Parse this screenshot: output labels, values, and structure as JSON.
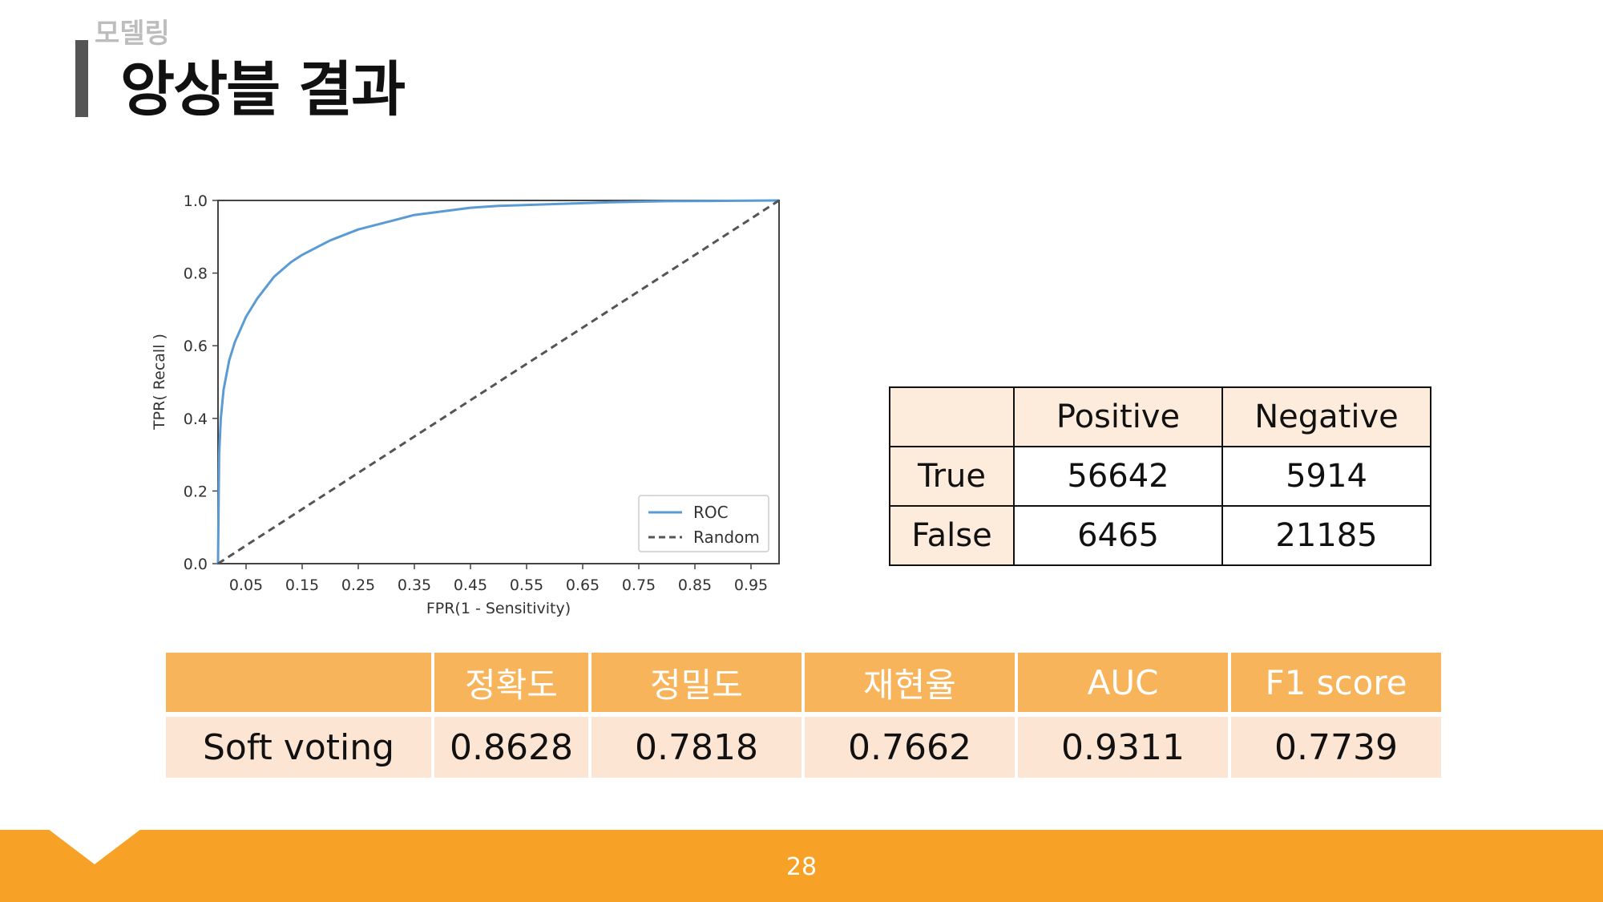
{
  "slide": {
    "section": "모델링",
    "title": "앙상블 결과",
    "page_number": "28"
  },
  "colors": {
    "accent": "#f7a126",
    "metric_header": "#f8b45a",
    "metric_row": "#fde5d3",
    "cm_header": "#fdebdc",
    "roc_line": "#5b9bd5",
    "random_line": "#555555"
  },
  "chart_data": {
    "type": "line",
    "title": "",
    "xlabel": "FPR(1 - Sensitivity)",
    "ylabel": "TPR( Recall )",
    "xlim": [
      0,
      1
    ],
    "ylim": [
      0,
      1
    ],
    "x_ticks": [
      "0.05",
      "0.15",
      "0.25",
      "0.35",
      "0.45",
      "0.55",
      "0.65",
      "0.75",
      "0.85",
      "0.95"
    ],
    "y_ticks": [
      "0.0",
      "0.2",
      "0.4",
      "0.6",
      "0.8",
      "1.0"
    ],
    "legend_position": "lower-right",
    "series": [
      {
        "name": "ROC",
        "style": "solid",
        "x": [
          0,
          0.002,
          0.005,
          0.01,
          0.02,
          0.03,
          0.05,
          0.07,
          0.1,
          0.13,
          0.15,
          0.2,
          0.25,
          0.3,
          0.35,
          0.4,
          0.45,
          0.5,
          0.6,
          0.7,
          0.8,
          0.9,
          1.0
        ],
        "y": [
          0,
          0.3,
          0.4,
          0.48,
          0.56,
          0.61,
          0.68,
          0.73,
          0.79,
          0.83,
          0.85,
          0.89,
          0.92,
          0.94,
          0.96,
          0.97,
          0.98,
          0.985,
          0.99,
          0.995,
          0.998,
          0.999,
          1.0
        ]
      },
      {
        "name": "Random",
        "style": "dashed",
        "x": [
          0,
          1
        ],
        "y": [
          0,
          1
        ]
      }
    ]
  },
  "confusion_matrix": {
    "headers": [
      "",
      "Positive",
      "Negative"
    ],
    "rows": [
      {
        "label": "True",
        "values": [
          "56642",
          "5914"
        ]
      },
      {
        "label": "False",
        "values": [
          "6465",
          "21185"
        ]
      }
    ]
  },
  "metrics_table": {
    "headers": [
      "",
      "정확도",
      "정밀도",
      "재현율",
      "AUC",
      "F1 score"
    ],
    "rows": [
      {
        "label": "Soft voting",
        "values": [
          "0.8628",
          "0.7818",
          "0.7662",
          "0.9311",
          "0.7739"
        ]
      }
    ]
  }
}
